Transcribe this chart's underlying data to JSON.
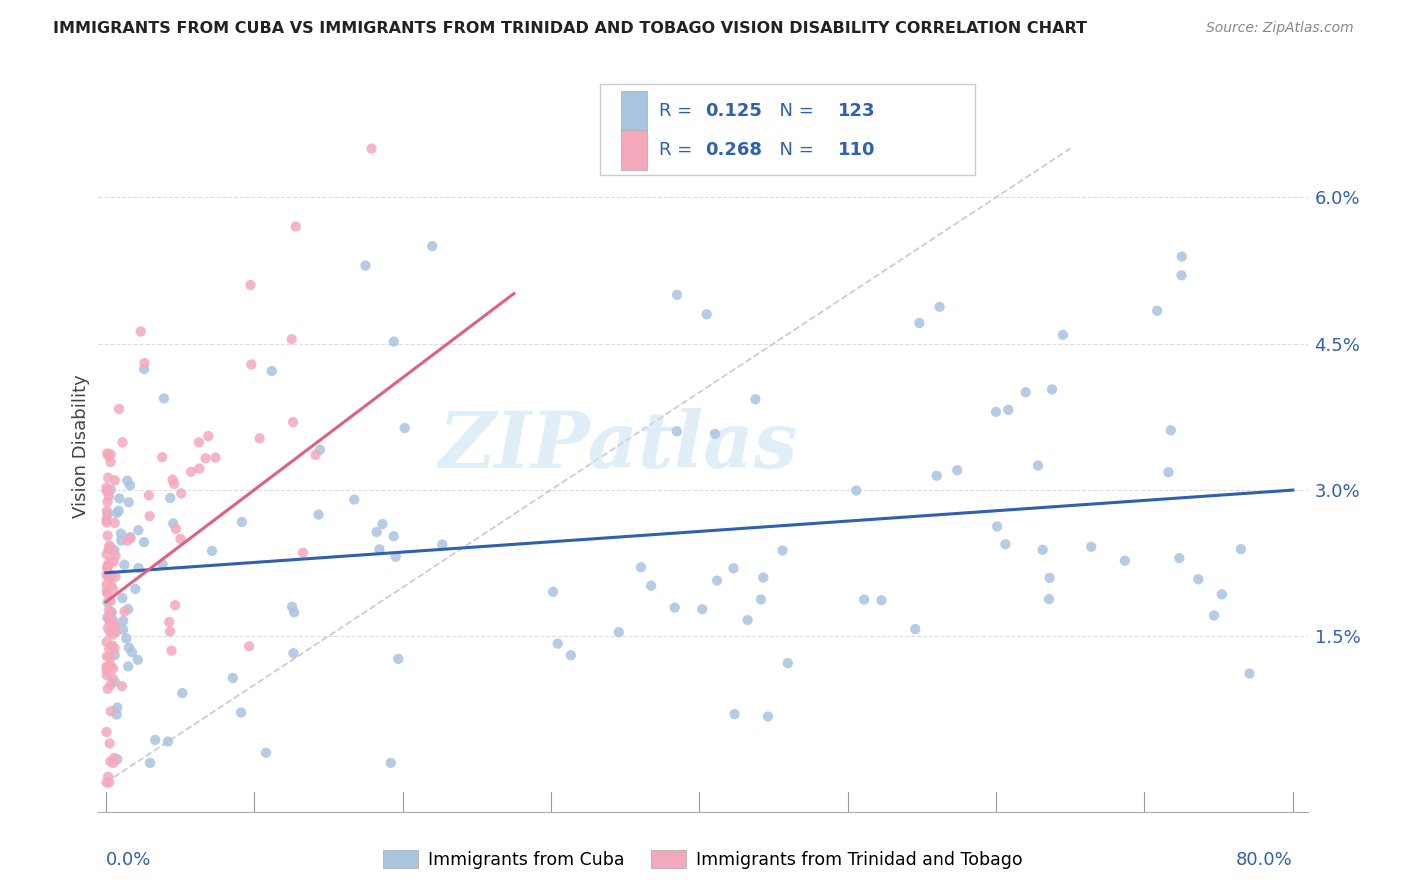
{
  "title": "IMMIGRANTS FROM CUBA VS IMMIGRANTS FROM TRINIDAD AND TOBAGO VISION DISABILITY CORRELATION CHART",
  "source": "Source: ZipAtlas.com",
  "ylabel": "Vision Disability",
  "color_cuba": "#a8c4e0",
  "color_tt": "#f4a8bc",
  "color_cuba_line": "#3060b0",
  "color_tt_line": "#e06080",
  "color_ref_line": "#cccccc",
  "watermark_text": "ZIPatlas",
  "watermark_color": "#cce4f4",
  "legend_R1": "0.125",
  "legend_N1": "123",
  "legend_R2": "0.268",
  "legend_N2": "110",
  "legend_label1": "Immigrants from Cuba",
  "legend_label2": "Immigrants from Trinidad and Tobago",
  "legend_text_color": "#3060b0",
  "xmin_label": "0.0%",
  "xmax_label": "80.0%",
  "ytick_vals": [
    0.015,
    0.03,
    0.045,
    0.06
  ],
  "ytick_labels": [
    "1.5%",
    "3.0%",
    "4.5%",
    "6.0%"
  ],
  "grid_color": "#dddddd",
  "xlim_min": 0.0,
  "xlim_max": 0.8,
  "ylim_min": 0.0,
  "ylim_max": 0.068,
  "cuba_trend_intercept": 0.0215,
  "cuba_trend_slope": 0.0106,
  "cuba_trend_x0": 0.0,
  "cuba_trend_x1": 0.8,
  "tt_trend_intercept": 0.0185,
  "tt_trend_slope": 0.115,
  "tt_trend_x0": 0.0,
  "tt_trend_x1": 0.275,
  "ref_line_x0": 0.0,
  "ref_line_x1": 0.65,
  "ref_line_y0": 0.0,
  "ref_line_y1": 0.065
}
